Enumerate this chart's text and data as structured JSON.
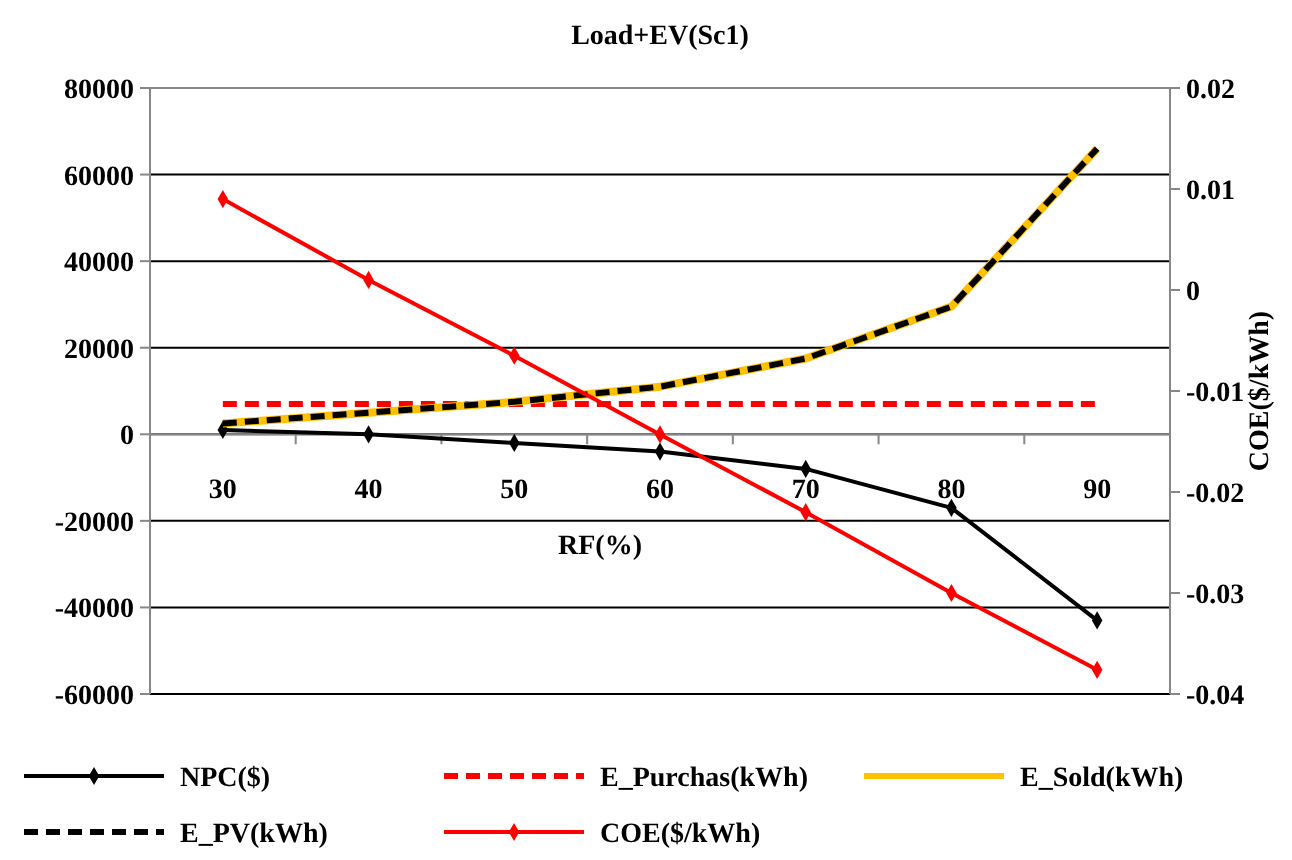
{
  "chart_data": {
    "type": "line",
    "title": "Load+EV(Sc1)",
    "xlabel": "RF(%)",
    "y2label": "COE($/kWh)",
    "categories": [
      "30",
      "40",
      "50",
      "60",
      "70",
      "80",
      "90"
    ],
    "ylim": [
      -60000,
      80000
    ],
    "yticks": [
      -60000,
      -40000,
      -20000,
      0,
      20000,
      40000,
      60000,
      80000
    ],
    "y2lim": [
      -0.04,
      0.02
    ],
    "y2ticks": [
      -0.04,
      -0.03,
      -0.02,
      -0.01,
      0,
      0.01,
      0.02
    ],
    "grid": "y",
    "legend": "bottom",
    "series": [
      {
        "name": "NPC($)",
        "color": "#000000",
        "marker": "diamond",
        "line_style": "solid",
        "values": [
          1000,
          0,
          -2000,
          -4000,
          -8000,
          -17000,
          -43000
        ]
      },
      {
        "name": "E_Purchas(kWh)",
        "color": "#ff0000",
        "marker": "none",
        "line_style": "dashed",
        "values": [
          7000,
          7000,
          7000,
          7000,
          7000,
          7000,
          7000
        ]
      },
      {
        "name": "E_Sold(kWh)",
        "color": "#ffc000",
        "marker": "none",
        "line_style": "solid",
        "values": [
          2500,
          5000,
          7500,
          11000,
          17500,
          29500,
          66000
        ]
      },
      {
        "name": "E_PV(kWh)",
        "color": "#000000",
        "marker": "none",
        "line_style": "dashed",
        "values": [
          2500,
          5000,
          7500,
          11000,
          17500,
          29500,
          66000
        ]
      },
      {
        "name": "COE($/kWh)",
        "color": "#ff0000",
        "marker": "diamond",
        "line_style": "solid",
        "axis": "y2",
        "values": [
          0.009,
          0.001,
          -0.0065,
          -0.0143,
          -0.022,
          -0.03,
          -0.0376
        ]
      }
    ]
  }
}
